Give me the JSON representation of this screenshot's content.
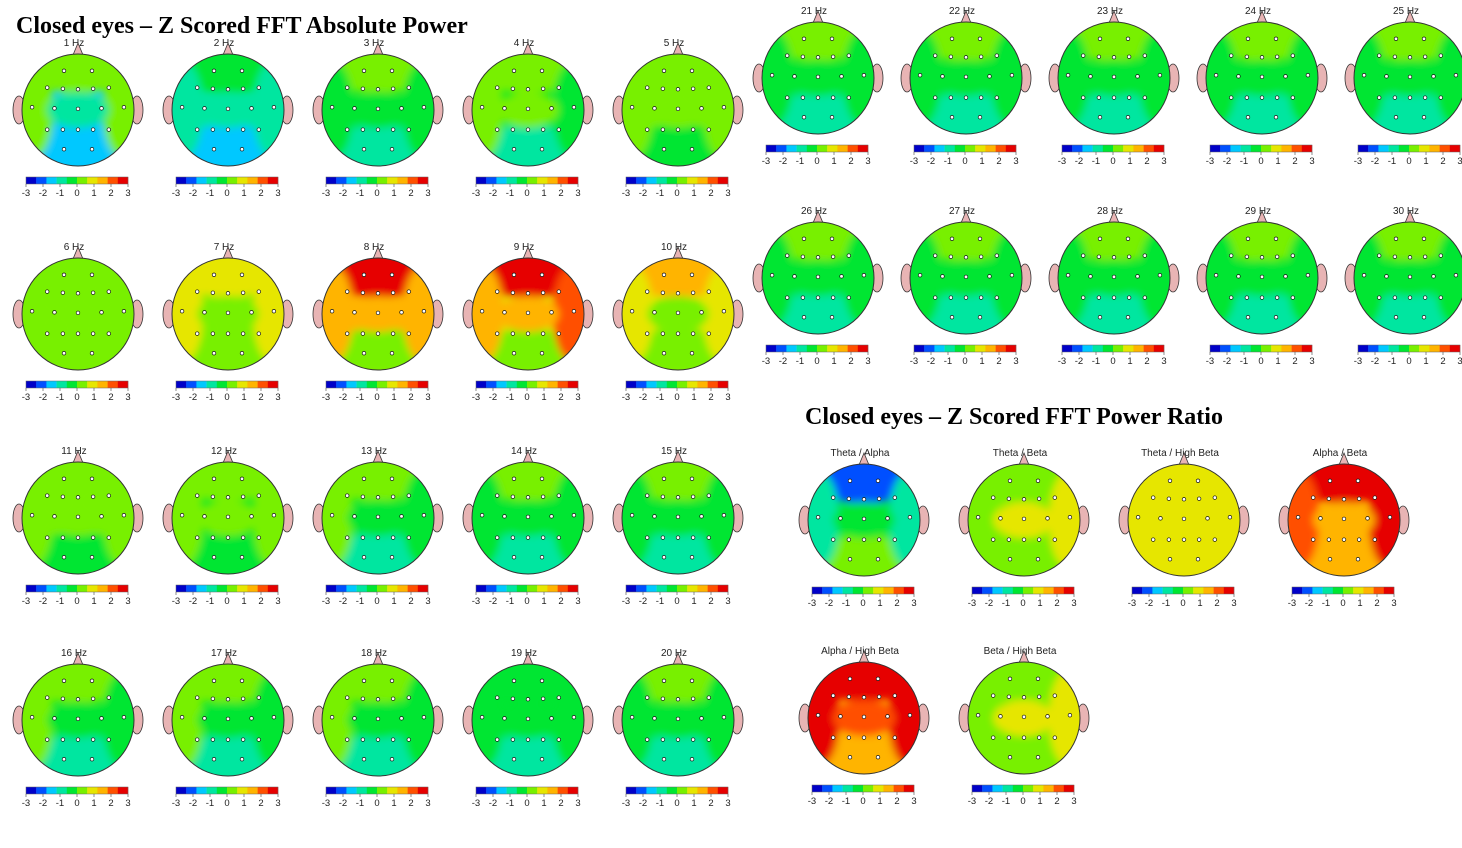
{
  "sections": {
    "absolute_power": {
      "title": "Closed eyes – Z Scored FFT Absolute Power",
      "maps": [
        {
          "label": "1 Hz",
          "base": -1.6,
          "lobes": {
            "frontal": 0.3,
            "central": -0.8,
            "posterior": -1.6,
            "left": 0.0,
            "right": 0.2
          }
        },
        {
          "label": "2 Hz",
          "base": -1.1,
          "lobes": {
            "frontal": -0.5,
            "central": -0.9,
            "posterior": -1.5,
            "left": -0.6,
            "right": -1.2
          }
        },
        {
          "label": "3 Hz",
          "base": -0.5,
          "lobes": {
            "frontal": 0.1,
            "central": -0.5,
            "posterior": -0.8,
            "left": -0.3,
            "right": -0.3
          }
        },
        {
          "label": "4 Hz",
          "base": -0.2,
          "lobes": {
            "frontal": 0.1,
            "central": 0.0,
            "posterior": -0.6,
            "left": 0.2,
            "right": -0.2
          }
        },
        {
          "label": "5 Hz",
          "base": 0.0,
          "lobes": {
            "frontal": 0.1,
            "central": 0.2,
            "posterior": -0.3,
            "left": 0.0,
            "right": 0.0
          }
        },
        {
          "label": "6 Hz",
          "base": 0.3,
          "lobes": {
            "frontal": 0.5,
            "central": 0.4,
            "posterior": 0.0,
            "left": 0.2,
            "right": 0.2
          }
        },
        {
          "label": "7 Hz",
          "base": 0.5,
          "lobes": {
            "frontal": 0.9,
            "central": 0.3,
            "posterior": 0.0,
            "left": 0.6,
            "right": 0.6
          }
        },
        {
          "label": "8 Hz",
          "base": 1.2,
          "lobes": {
            "frontal": 3.0,
            "central": 1.5,
            "posterior": 0.4,
            "left": 1.6,
            "right": 1.6
          }
        },
        {
          "label": "9 Hz",
          "base": 1.1,
          "lobes": {
            "frontal": 3.0,
            "central": 1.4,
            "posterior": 0.4,
            "left": 1.8,
            "right": 2.0
          }
        },
        {
          "label": "10 Hz",
          "base": 0.8,
          "lobes": {
            "frontal": 1.5,
            "central": 0.5,
            "posterior": 0.2,
            "left": 1.0,
            "right": 1.1
          }
        },
        {
          "label": "11 Hz",
          "base": 0.0,
          "lobes": {
            "frontal": 0.1,
            "central": 0.0,
            "posterior": -0.2,
            "left": 0.0,
            "right": 0.0
          }
        },
        {
          "label": "12 Hz",
          "base": -0.1,
          "lobes": {
            "frontal": 0.0,
            "central": 0.0,
            "posterior": -0.4,
            "left": 0.0,
            "right": 0.0
          }
        },
        {
          "label": "13 Hz",
          "base": -0.2,
          "lobes": {
            "frontal": 0.0,
            "central": -0.1,
            "posterior": -0.6,
            "left": 0.0,
            "right": -0.1
          }
        },
        {
          "label": "14 Hz",
          "base": -0.3,
          "lobes": {
            "frontal": 0.0,
            "central": -0.2,
            "posterior": -0.8,
            "left": -0.1,
            "right": -0.3
          }
        },
        {
          "label": "15 Hz",
          "base": -0.3,
          "lobes": {
            "frontal": 0.0,
            "central": -0.2,
            "posterior": -0.9,
            "left": -0.1,
            "right": -0.4
          }
        },
        {
          "label": "16 Hz",
          "base": -0.2,
          "lobes": {
            "frontal": 0.0,
            "central": -0.1,
            "posterior": -0.7,
            "left": 0.0,
            "right": -0.1
          }
        },
        {
          "label": "17 Hz",
          "base": -0.2,
          "lobes": {
            "frontal": 0.0,
            "central": -0.1,
            "posterior": -0.6,
            "left": 0.0,
            "right": -0.1
          }
        },
        {
          "label": "18 Hz",
          "base": -0.2,
          "lobes": {
            "frontal": 0.0,
            "central": -0.2,
            "posterior": -0.7,
            "left": 0.0,
            "right": -0.1
          }
        },
        {
          "label": "19 Hz",
          "base": -0.3,
          "lobes": {
            "frontal": -0.1,
            "central": -0.3,
            "posterior": -0.8,
            "left": -0.1,
            "right": -0.2
          }
        },
        {
          "label": "20 Hz",
          "base": -0.3,
          "lobes": {
            "frontal": 0.0,
            "central": -0.2,
            "posterior": -0.8,
            "left": -0.1,
            "right": -0.3
          }
        },
        {
          "label": "21 Hz",
          "base": -0.3,
          "lobes": {
            "frontal": 0.0,
            "central": -0.3,
            "posterior": -0.8,
            "left": -0.1,
            "right": -0.2
          }
        },
        {
          "label": "22 Hz",
          "base": -0.3,
          "lobes": {
            "frontal": 0.0,
            "central": -0.3,
            "posterior": -0.8,
            "left": -0.1,
            "right": -0.2
          }
        },
        {
          "label": "23 Hz",
          "base": -0.3,
          "lobes": {
            "frontal": 0.0,
            "central": -0.3,
            "posterior": -0.7,
            "left": -0.1,
            "right": -0.2
          }
        },
        {
          "label": "24 Hz",
          "base": -0.3,
          "lobes": {
            "frontal": 0.0,
            "central": -0.3,
            "posterior": -0.7,
            "left": -0.1,
            "right": -0.2
          }
        },
        {
          "label": "25 Hz",
          "base": -0.3,
          "lobes": {
            "frontal": 0.0,
            "central": -0.3,
            "posterior": -0.7,
            "left": -0.1,
            "right": -0.2
          }
        },
        {
          "label": "26 Hz",
          "base": -0.3,
          "lobes": {
            "frontal": 0.0,
            "central": -0.2,
            "posterior": -0.7,
            "left": -0.1,
            "right": -0.2
          }
        },
        {
          "label": "27 Hz",
          "base": -0.3,
          "lobes": {
            "frontal": 0.0,
            "central": -0.2,
            "posterior": -0.6,
            "left": -0.1,
            "right": -0.2
          }
        },
        {
          "label": "28 Hz",
          "base": -0.3,
          "lobes": {
            "frontal": 0.0,
            "central": -0.2,
            "posterior": -0.6,
            "left": -0.1,
            "right": -0.2
          }
        },
        {
          "label": "29 Hz",
          "base": -0.3,
          "lobes": {
            "frontal": 0.0,
            "central": -0.3,
            "posterior": -0.6,
            "left": -0.1,
            "right": -0.2
          }
        },
        {
          "label": "30 Hz",
          "base": -0.3,
          "lobes": {
            "frontal": 0.0,
            "central": -0.3,
            "posterior": -0.6,
            "left": -0.1,
            "right": -0.2
          }
        }
      ]
    },
    "power_ratio": {
      "title": "Closed eyes – Z Scored FFT Power Ratio",
      "maps": [
        {
          "label": "Theta / Alpha",
          "base": -0.4,
          "lobes": {
            "frontal": -1.8,
            "central": -0.4,
            "posterior": 0.0,
            "left": -0.9,
            "right": -0.9
          }
        },
        {
          "label": "Theta / Beta",
          "base": 0.4,
          "lobes": {
            "frontal": 0.4,
            "central": 0.6,
            "posterior": 0.5,
            "left": 0.3,
            "right": 0.6
          }
        },
        {
          "label": "Theta / High Beta",
          "base": 0.6,
          "lobes": {
            "frontal": 0.6,
            "central": 0.9,
            "posterior": 0.6,
            "left": 0.7,
            "right": 0.6
          }
        },
        {
          "label": "Alpha / Beta",
          "base": 1.7,
          "lobes": {
            "frontal": 2.9,
            "central": 1.7,
            "posterior": 1.4,
            "left": 2.2,
            "right": 2.4
          }
        },
        {
          "label": "Alpha / High Beta",
          "base": 1.8,
          "lobes": {
            "frontal": 2.4,
            "central": 1.9,
            "posterior": 1.5,
            "left": 2.9,
            "right": 2.9
          }
        },
        {
          "label": "Beta / High Beta",
          "base": 0.5,
          "lobes": {
            "frontal": 0.5,
            "central": 0.8,
            "posterior": 0.5,
            "left": 0.4,
            "right": 0.6
          }
        }
      ]
    }
  },
  "color_scale": {
    "ticks": [
      "-3",
      "-2",
      "-1",
      "0",
      "1",
      "2",
      "3"
    ],
    "min": -3,
    "max": 3,
    "colors": [
      "#0000c8",
      "#0050ff",
      "#00c8ff",
      "#00e6a0",
      "#00e632",
      "#78f000",
      "#e6e600",
      "#ffb400",
      "#ff5000",
      "#e60000"
    ]
  },
  "colors": {
    "ear": "#e8b4b4",
    "outline": "#333333",
    "electrode": "#ffffff"
  }
}
